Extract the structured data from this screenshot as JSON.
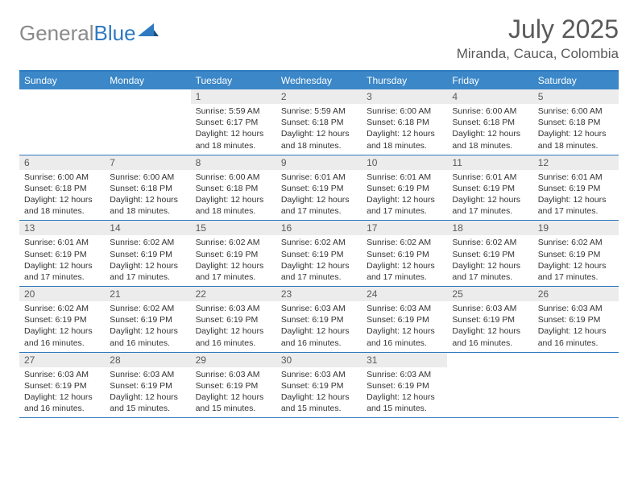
{
  "logo": {
    "text_gray": "General",
    "text_blue": "Blue"
  },
  "title": "July 2025",
  "location": "Miranda, Cauca, Colombia",
  "colors": {
    "header_bg": "#3b87c8",
    "header_text": "#ffffff",
    "border": "#2f7ac0",
    "daynum_bg": "#ececec",
    "text_muted": "#595959",
    "text_body": "#333333",
    "logo_gray": "#8a8a8a",
    "logo_blue": "#2f7ac0"
  },
  "day_names": [
    "Sunday",
    "Monday",
    "Tuesday",
    "Wednesday",
    "Thursday",
    "Friday",
    "Saturday"
  ],
  "weeks": [
    [
      {
        "blank": true
      },
      {
        "blank": true
      },
      {
        "n": "1",
        "sunrise": "Sunrise: 5:59 AM",
        "sunset": "Sunset: 6:17 PM",
        "day1": "Daylight: 12 hours",
        "day2": "and 18 minutes."
      },
      {
        "n": "2",
        "sunrise": "Sunrise: 5:59 AM",
        "sunset": "Sunset: 6:18 PM",
        "day1": "Daylight: 12 hours",
        "day2": "and 18 minutes."
      },
      {
        "n": "3",
        "sunrise": "Sunrise: 6:00 AM",
        "sunset": "Sunset: 6:18 PM",
        "day1": "Daylight: 12 hours",
        "day2": "and 18 minutes."
      },
      {
        "n": "4",
        "sunrise": "Sunrise: 6:00 AM",
        "sunset": "Sunset: 6:18 PM",
        "day1": "Daylight: 12 hours",
        "day2": "and 18 minutes."
      },
      {
        "n": "5",
        "sunrise": "Sunrise: 6:00 AM",
        "sunset": "Sunset: 6:18 PM",
        "day1": "Daylight: 12 hours",
        "day2": "and 18 minutes."
      }
    ],
    [
      {
        "n": "6",
        "sunrise": "Sunrise: 6:00 AM",
        "sunset": "Sunset: 6:18 PM",
        "day1": "Daylight: 12 hours",
        "day2": "and 18 minutes."
      },
      {
        "n": "7",
        "sunrise": "Sunrise: 6:00 AM",
        "sunset": "Sunset: 6:18 PM",
        "day1": "Daylight: 12 hours",
        "day2": "and 18 minutes."
      },
      {
        "n": "8",
        "sunrise": "Sunrise: 6:00 AM",
        "sunset": "Sunset: 6:18 PM",
        "day1": "Daylight: 12 hours",
        "day2": "and 18 minutes."
      },
      {
        "n": "9",
        "sunrise": "Sunrise: 6:01 AM",
        "sunset": "Sunset: 6:19 PM",
        "day1": "Daylight: 12 hours",
        "day2": "and 17 minutes."
      },
      {
        "n": "10",
        "sunrise": "Sunrise: 6:01 AM",
        "sunset": "Sunset: 6:19 PM",
        "day1": "Daylight: 12 hours",
        "day2": "and 17 minutes."
      },
      {
        "n": "11",
        "sunrise": "Sunrise: 6:01 AM",
        "sunset": "Sunset: 6:19 PM",
        "day1": "Daylight: 12 hours",
        "day2": "and 17 minutes."
      },
      {
        "n": "12",
        "sunrise": "Sunrise: 6:01 AM",
        "sunset": "Sunset: 6:19 PM",
        "day1": "Daylight: 12 hours",
        "day2": "and 17 minutes."
      }
    ],
    [
      {
        "n": "13",
        "sunrise": "Sunrise: 6:01 AM",
        "sunset": "Sunset: 6:19 PM",
        "day1": "Daylight: 12 hours",
        "day2": "and 17 minutes."
      },
      {
        "n": "14",
        "sunrise": "Sunrise: 6:02 AM",
        "sunset": "Sunset: 6:19 PM",
        "day1": "Daylight: 12 hours",
        "day2": "and 17 minutes."
      },
      {
        "n": "15",
        "sunrise": "Sunrise: 6:02 AM",
        "sunset": "Sunset: 6:19 PM",
        "day1": "Daylight: 12 hours",
        "day2": "and 17 minutes."
      },
      {
        "n": "16",
        "sunrise": "Sunrise: 6:02 AM",
        "sunset": "Sunset: 6:19 PM",
        "day1": "Daylight: 12 hours",
        "day2": "and 17 minutes."
      },
      {
        "n": "17",
        "sunrise": "Sunrise: 6:02 AM",
        "sunset": "Sunset: 6:19 PM",
        "day1": "Daylight: 12 hours",
        "day2": "and 17 minutes."
      },
      {
        "n": "18",
        "sunrise": "Sunrise: 6:02 AM",
        "sunset": "Sunset: 6:19 PM",
        "day1": "Daylight: 12 hours",
        "day2": "and 17 minutes."
      },
      {
        "n": "19",
        "sunrise": "Sunrise: 6:02 AM",
        "sunset": "Sunset: 6:19 PM",
        "day1": "Daylight: 12 hours",
        "day2": "and 17 minutes."
      }
    ],
    [
      {
        "n": "20",
        "sunrise": "Sunrise: 6:02 AM",
        "sunset": "Sunset: 6:19 PM",
        "day1": "Daylight: 12 hours",
        "day2": "and 16 minutes."
      },
      {
        "n": "21",
        "sunrise": "Sunrise: 6:02 AM",
        "sunset": "Sunset: 6:19 PM",
        "day1": "Daylight: 12 hours",
        "day2": "and 16 minutes."
      },
      {
        "n": "22",
        "sunrise": "Sunrise: 6:03 AM",
        "sunset": "Sunset: 6:19 PM",
        "day1": "Daylight: 12 hours",
        "day2": "and 16 minutes."
      },
      {
        "n": "23",
        "sunrise": "Sunrise: 6:03 AM",
        "sunset": "Sunset: 6:19 PM",
        "day1": "Daylight: 12 hours",
        "day2": "and 16 minutes."
      },
      {
        "n": "24",
        "sunrise": "Sunrise: 6:03 AM",
        "sunset": "Sunset: 6:19 PM",
        "day1": "Daylight: 12 hours",
        "day2": "and 16 minutes."
      },
      {
        "n": "25",
        "sunrise": "Sunrise: 6:03 AM",
        "sunset": "Sunset: 6:19 PM",
        "day1": "Daylight: 12 hours",
        "day2": "and 16 minutes."
      },
      {
        "n": "26",
        "sunrise": "Sunrise: 6:03 AM",
        "sunset": "Sunset: 6:19 PM",
        "day1": "Daylight: 12 hours",
        "day2": "and 16 minutes."
      }
    ],
    [
      {
        "n": "27",
        "sunrise": "Sunrise: 6:03 AM",
        "sunset": "Sunset: 6:19 PM",
        "day1": "Daylight: 12 hours",
        "day2": "and 16 minutes."
      },
      {
        "n": "28",
        "sunrise": "Sunrise: 6:03 AM",
        "sunset": "Sunset: 6:19 PM",
        "day1": "Daylight: 12 hours",
        "day2": "and 15 minutes."
      },
      {
        "n": "29",
        "sunrise": "Sunrise: 6:03 AM",
        "sunset": "Sunset: 6:19 PM",
        "day1": "Daylight: 12 hours",
        "day2": "and 15 minutes."
      },
      {
        "n": "30",
        "sunrise": "Sunrise: 6:03 AM",
        "sunset": "Sunset: 6:19 PM",
        "day1": "Daylight: 12 hours",
        "day2": "and 15 minutes."
      },
      {
        "n": "31",
        "sunrise": "Sunrise: 6:03 AM",
        "sunset": "Sunset: 6:19 PM",
        "day1": "Daylight: 12 hours",
        "day2": "and 15 minutes."
      },
      {
        "blank": true
      },
      {
        "blank": true
      }
    ]
  ]
}
